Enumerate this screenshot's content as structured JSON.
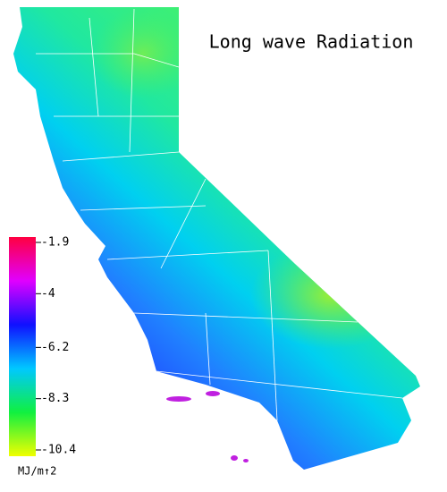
{
  "title": "Long wave Radiation",
  "colorbar": {
    "ticks": [
      -1.9,
      -4.0,
      -6.2,
      -8.3,
      -10.4
    ],
    "colors": [
      "#ff0040",
      "#e000ff",
      "#1010ff",
      "#00c8ff",
      "#10f040",
      "#f0ff00"
    ],
    "unit": "MJ/m↑2"
  }
}
